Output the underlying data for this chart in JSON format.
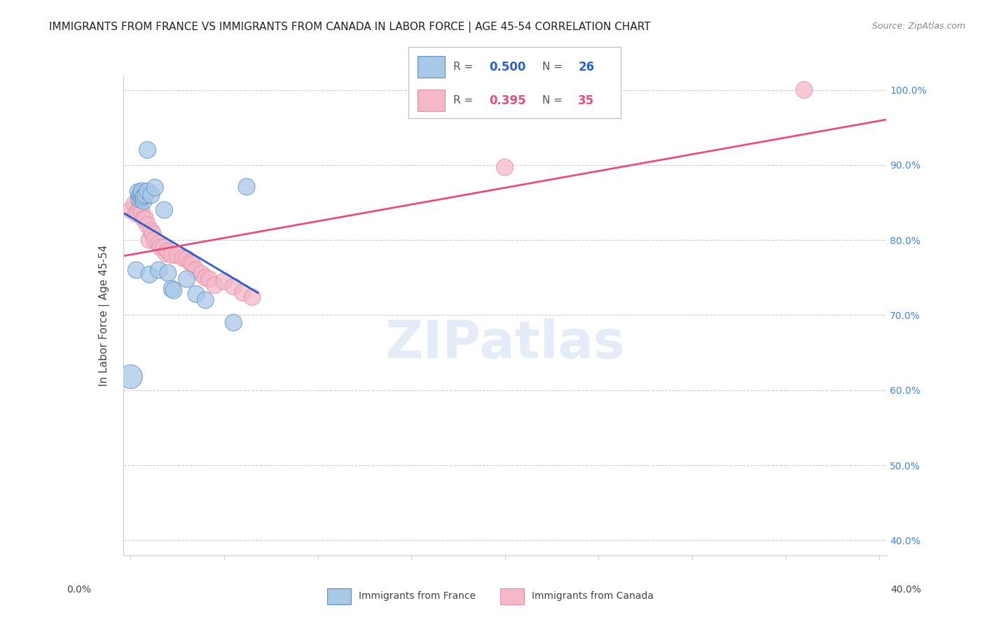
{
  "title": "IMMIGRANTS FROM FRANCE VS IMMIGRANTS FROM CANADA IN LABOR FORCE | AGE 45-54 CORRELATION CHART",
  "source": "Source: ZipAtlas.com",
  "ylabel": "In Labor Force | Age 45-54",
  "yaxis_labels": [
    "100.0%",
    "90.0%",
    "80.0%",
    "70.0%",
    "60.0%",
    "50.0%",
    "40.0%"
  ],
  "yaxis_values": [
    1.0,
    0.9,
    0.8,
    0.7,
    0.6,
    0.5,
    0.4
  ],
  "xmin": 0.0,
  "xmax": 0.4,
  "ymin": 0.38,
  "ymax": 1.02,
  "legend_france": "Immigrants from France",
  "legend_canada": "Immigrants from Canada",
  "R_france": "0.500",
  "N_france": "26",
  "R_canada": "0.395",
  "N_canada": "35",
  "color_france": "#a8c8e8",
  "color_canada": "#f4b8c8",
  "color_france_line": "#3060c0",
  "color_canada_line": "#e05080",
  "color_france_dark": "#6090c0",
  "color_canada_dark": "#e090a8",
  "watermark": "ZIPatlas",
  "france_x": [
    0.0,
    0.003,
    0.004,
    0.005,
    0.005,
    0.006,
    0.006,
    0.006,
    0.007,
    0.007,
    0.008,
    0.009,
    0.009,
    0.01,
    0.011,
    0.013,
    0.015,
    0.018,
    0.02,
    0.022,
    0.023,
    0.03,
    0.035,
    0.04,
    0.055,
    0.062
  ],
  "france_y": [
    0.618,
    0.76,
    0.864,
    0.855,
    0.86,
    0.856,
    0.862,
    0.865,
    0.852,
    0.858,
    0.86,
    0.865,
    0.92,
    0.754,
    0.86,
    0.87,
    0.76,
    0.84,
    0.756,
    0.735,
    0.733,
    0.748,
    0.728,
    0.72,
    0.69,
    0.871
  ],
  "france_sizes": [
    600,
    300,
    300,
    350,
    300,
    320,
    300,
    320,
    300,
    300,
    300,
    300,
    300,
    300,
    300,
    300,
    300,
    300,
    300,
    300,
    300,
    300,
    300,
    300,
    300,
    300
  ],
  "canada_x": [
    0.0,
    0.002,
    0.003,
    0.004,
    0.005,
    0.006,
    0.007,
    0.008,
    0.009,
    0.01,
    0.011,
    0.012,
    0.013,
    0.015,
    0.016,
    0.018,
    0.019,
    0.02,
    0.022,
    0.025,
    0.028,
    0.03,
    0.032,
    0.033,
    0.035,
    0.038,
    0.04,
    0.042,
    0.045,
    0.05,
    0.055,
    0.06,
    0.065,
    0.2,
    0.36
  ],
  "canada_y": [
    0.84,
    0.848,
    0.835,
    0.838,
    0.843,
    0.837,
    0.828,
    0.828,
    0.82,
    0.8,
    0.812,
    0.808,
    0.8,
    0.795,
    0.79,
    0.79,
    0.782,
    0.785,
    0.78,
    0.78,
    0.776,
    0.775,
    0.77,
    0.768,
    0.76,
    0.755,
    0.75,
    0.748,
    0.74,
    0.745,
    0.738,
    0.73,
    0.724,
    0.897,
    1.0
  ],
  "canada_sizes": [
    300,
    300,
    300,
    300,
    300,
    300,
    300,
    300,
    300,
    300,
    300,
    300,
    300,
    300,
    300,
    300,
    300,
    300,
    300,
    300,
    300,
    300,
    300,
    300,
    300,
    300,
    300,
    300,
    300,
    300,
    300,
    300,
    300,
    300,
    300
  ]
}
